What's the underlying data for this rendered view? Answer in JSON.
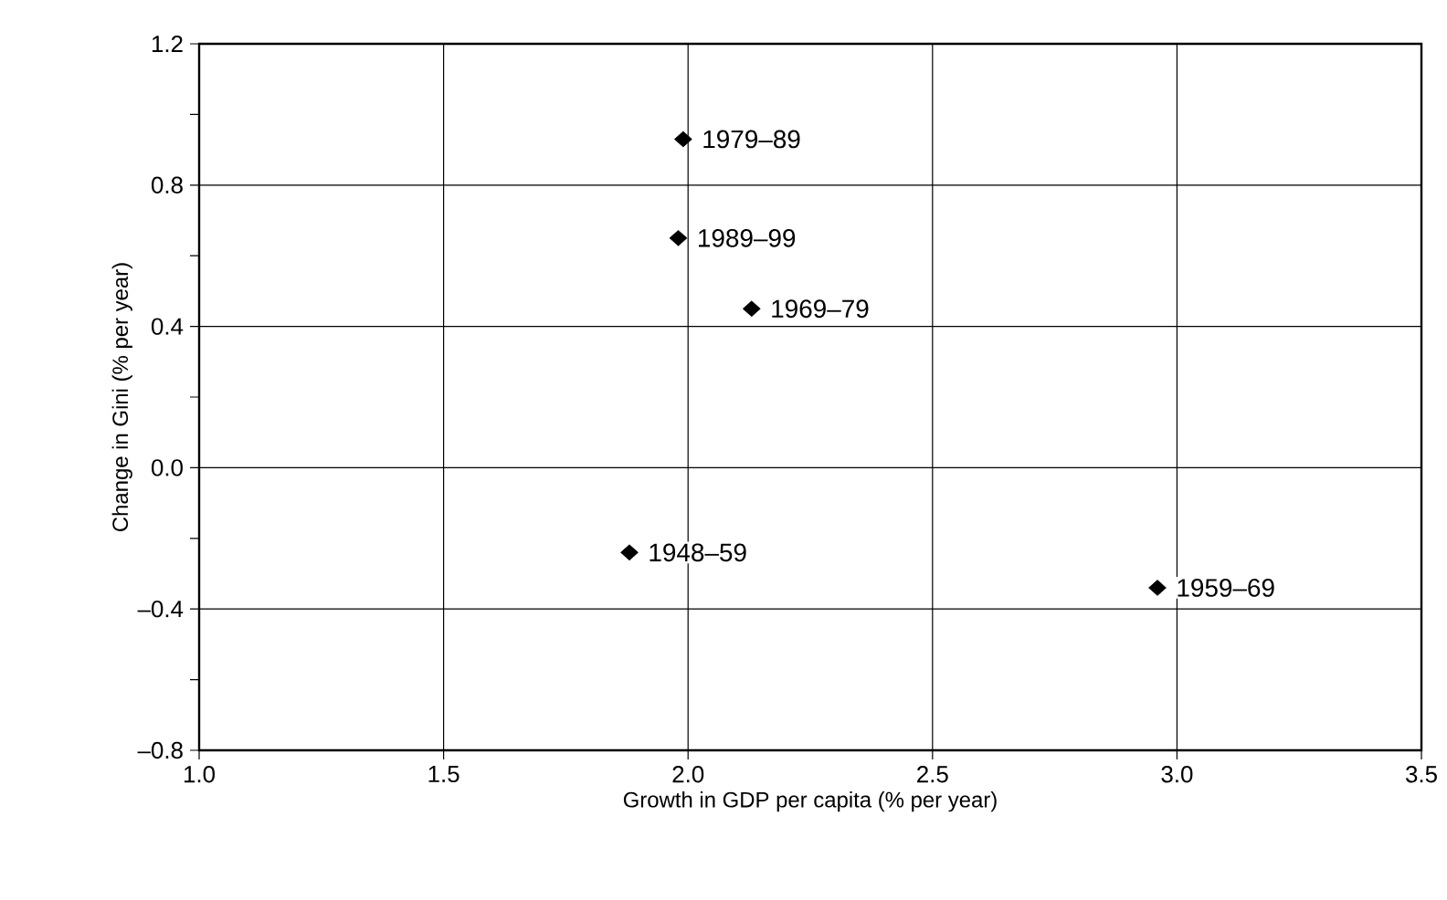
{
  "chart_data": {
    "type": "scatter",
    "xlabel": "Growth in GDP per capita (% per year)",
    "ylabel": "Change in Gini (% per year)",
    "series": [
      {
        "color": "#000000",
        "x": [
          1.99,
          1.98,
          2.13,
          1.88,
          2.96
        ],
        "values": [
          0.93,
          0.65,
          0.45,
          -0.24,
          -0.34
        ]
      }
    ],
    "annotations": [
      {
        "text": "1979–89",
        "x": 1.99,
        "y": 0.93
      },
      {
        "text": "1989–99",
        "x": 1.98,
        "y": 0.65
      },
      {
        "text": "1969–79",
        "x": 2.13,
        "y": 0.45
      },
      {
        "text": "1948–59",
        "x": 1.88,
        "y": -0.24
      },
      {
        "text": "1959–69",
        "x": 2.96,
        "y": -0.34
      }
    ],
    "xlim": [
      1.0,
      3.5
    ],
    "ylim": [
      -0.8,
      1.2
    ],
    "xticks": [
      {
        "value": 1.0,
        "label": "1.0"
      },
      {
        "value": 1.5,
        "label": "1.5"
      },
      {
        "value": 2.0,
        "label": "2.0"
      },
      {
        "value": 2.5,
        "label": "2.5"
      },
      {
        "value": 3.0,
        "label": "3.0"
      },
      {
        "value": 3.5,
        "label": "3.5"
      }
    ],
    "yticks": [
      {
        "value": -0.8,
        "label": "–0.8"
      },
      {
        "value": -0.6,
        "label": null
      },
      {
        "value": -0.4,
        "label": "–0.4"
      },
      {
        "value": -0.2,
        "label": null
      },
      {
        "value": 0.0,
        "label": "0.0"
      },
      {
        "value": 0.2,
        "label": null
      },
      {
        "value": 0.4,
        "label": "0.4"
      },
      {
        "value": 0.6,
        "label": null
      },
      {
        "value": 0.8,
        "label": "0.8"
      },
      {
        "value": 1.0,
        "label": null
      },
      {
        "value": 1.2,
        "label": "1.2"
      }
    ],
    "grid": true,
    "marker": "diamond"
  }
}
